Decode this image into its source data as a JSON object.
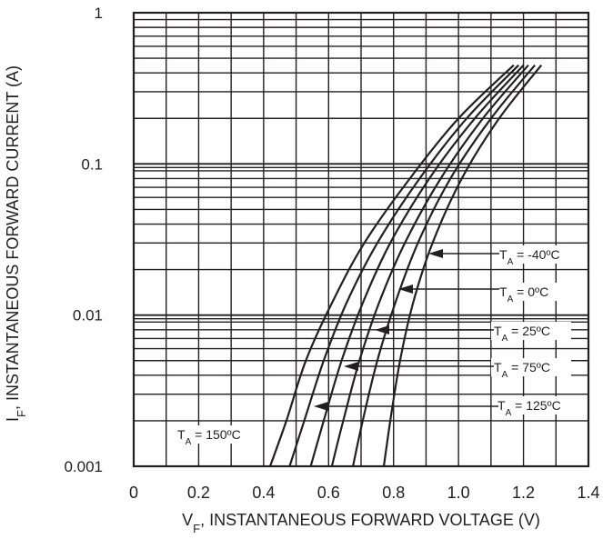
{
  "chart_data": {
    "type": "line",
    "y_scale": "log",
    "xlim": [
      0,
      1.4
    ],
    "ylim": [
      0.001,
      1
    ],
    "grid": true,
    "x_ticks": [
      "0",
      "0.2",
      "0.4",
      "0.6",
      "0.8",
      "1.0",
      "1.2",
      "1.4"
    ],
    "y_ticks": [
      "1",
      "0.1",
      "0.01",
      "0.001"
    ],
    "xlabel": {
      "main": "V",
      "sub": "F",
      "rest": ", INSTANTANEOUS FORWARD VOLTAGE (V)"
    },
    "ylabel": {
      "main": "I",
      "sub": "F",
      "rest": ", INSTANTANEOUS FORWARD CURRENT (A)"
    },
    "series": [
      {
        "name": "TA = 150ºC",
        "label": {
          "main": "T",
          "sub": "A",
          "rest": " = 150ºC"
        },
        "x": [
          0.42,
          0.47,
          0.53,
          0.61,
          0.71,
          0.85,
          1.0,
          1.17
        ],
        "y": [
          0.001,
          0.002,
          0.005,
          0.012,
          0.03,
          0.08,
          0.2,
          0.45
        ]
      },
      {
        "name": "TA = 125ºC",
        "label": {
          "main": "T",
          "sub": "A",
          "rest": " = 125ºC"
        },
        "x": [
          0.48,
          0.525,
          0.585,
          0.655,
          0.75,
          0.88,
          1.025,
          1.185
        ],
        "y": [
          0.001,
          0.002,
          0.005,
          0.012,
          0.03,
          0.08,
          0.2,
          0.45
        ]
      },
      {
        "name": "TA = 75ºC",
        "label": {
          "main": "T",
          "sub": "A",
          "rest": " = 75ºC"
        },
        "x": [
          0.545,
          0.585,
          0.64,
          0.705,
          0.79,
          0.91,
          1.05,
          1.2
        ],
        "y": [
          0.001,
          0.002,
          0.005,
          0.012,
          0.03,
          0.08,
          0.2,
          0.45
        ]
      },
      {
        "name": "TA = 25ºC",
        "label": {
          "main": "T",
          "sub": "A",
          "rest": " = 25ºC"
        },
        "x": [
          0.61,
          0.645,
          0.695,
          0.755,
          0.835,
          0.945,
          1.075,
          1.215
        ],
        "y": [
          0.001,
          0.002,
          0.005,
          0.012,
          0.03,
          0.08,
          0.2,
          0.45
        ]
      },
      {
        "name": "TA = 0ºC",
        "label": {
          "main": "T",
          "sub": "A",
          "rest": " = 0ºC"
        },
        "x": [
          0.675,
          0.705,
          0.75,
          0.805,
          0.875,
          0.975,
          1.1,
          1.235
        ],
        "y": [
          0.001,
          0.002,
          0.005,
          0.012,
          0.03,
          0.08,
          0.2,
          0.45
        ]
      },
      {
        "name": "TA = -40ºC",
        "label": {
          "main": "T",
          "sub": "A",
          "rest": " = -40ºC"
        },
        "x": [
          0.77,
          0.79,
          0.82,
          0.86,
          0.92,
          1.01,
          1.125,
          1.255
        ],
        "y": [
          0.001,
          0.002,
          0.005,
          0.012,
          0.03,
          0.08,
          0.2,
          0.45
        ]
      }
    ]
  }
}
